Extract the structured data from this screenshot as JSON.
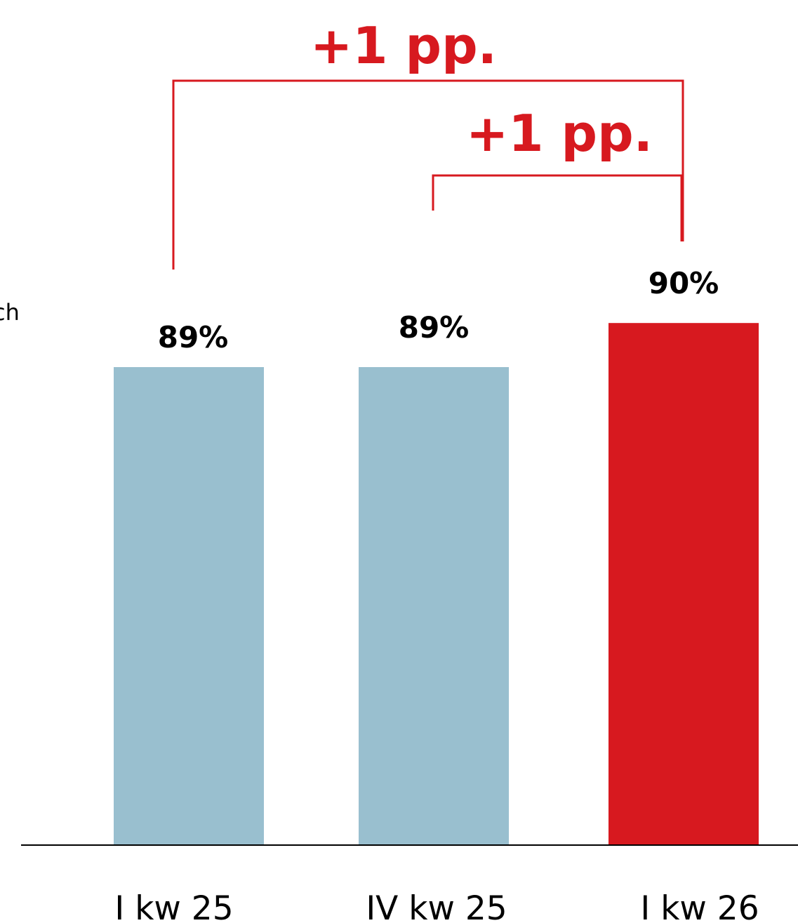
{
  "chart_data": {
    "type": "bar",
    "categories": [
      "I kw 25",
      "IV kw 25",
      "I kw 26"
    ],
    "values": [
      89,
      89,
      90
    ],
    "value_labels": [
      "89%",
      "89%",
      "90%"
    ],
    "title": "",
    "xlabel": "",
    "ylabel": "",
    "grid": false,
    "legend": "none",
    "colors": [
      "#99bfcf",
      "#99bfcf",
      "#d7191f"
    ],
    "axis_color": "#000000",
    "annotation_color": "#d7191f",
    "annotations": [
      {
        "label": "+1 pp.",
        "from_index": 0,
        "to_index": 2
      },
      {
        "label": "+1 pp.",
        "from_index": 1,
        "to_index": 2
      }
    ],
    "edge_text": "ch"
  }
}
